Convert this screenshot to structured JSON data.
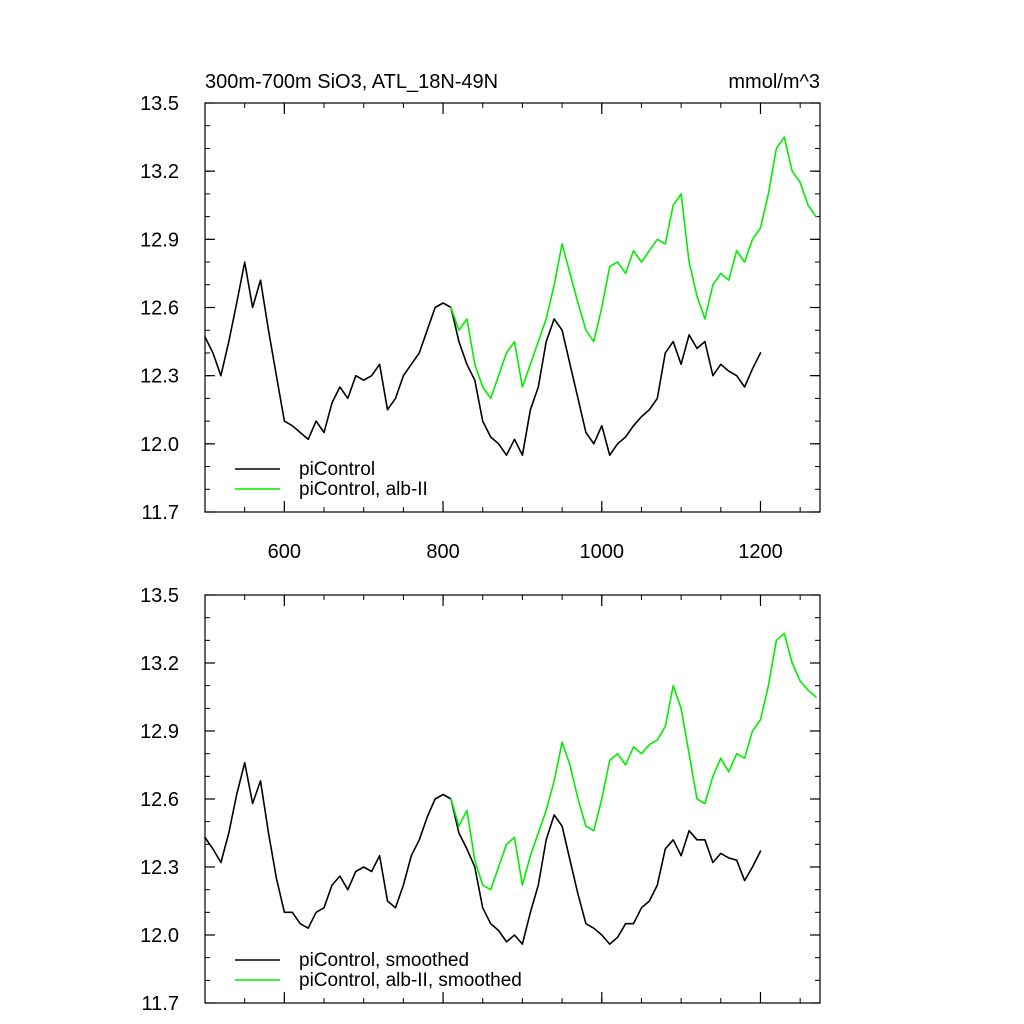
{
  "header": {
    "title": "300m-700m SiO3, ATL_18N-49N",
    "units": "mmol/m^3"
  },
  "chart_data": [
    {
      "type": "line",
      "panel": "top",
      "title": "300m-700m SiO3, ATL_18N-49N",
      "units": "mmol/m^3",
      "xlim": [
        500,
        1275
      ],
      "ylim": [
        11.7,
        13.5
      ],
      "xticks": [
        600,
        800,
        1000,
        1200
      ],
      "xtick_labels": [
        "600",
        "800",
        "1000",
        "1200"
      ],
      "yticks": [
        11.7,
        12.0,
        12.3,
        12.6,
        12.9,
        13.2,
        13.5
      ],
      "ytick_labels": [
        "11.7",
        "12.0",
        "12.3",
        "12.6",
        "12.9",
        "13.2",
        "13.5"
      ],
      "legend_position": "bottom-left",
      "series": [
        {
          "name": "piControl",
          "color": "#000000",
          "x": [
            500,
            510,
            520,
            530,
            540,
            550,
            560,
            570,
            580,
            590,
            600,
            610,
            620,
            630,
            640,
            650,
            660,
            670,
            680,
            690,
            700,
            710,
            720,
            730,
            740,
            750,
            760,
            770,
            780,
            790,
            800,
            810,
            820,
            830,
            840,
            850,
            860,
            870,
            880,
            890,
            900,
            910,
            920,
            930,
            940,
            950,
            960,
            970,
            980,
            990,
            1000,
            1010,
            1020,
            1030,
            1040,
            1050,
            1060,
            1070,
            1080,
            1090,
            1100,
            1110,
            1120,
            1130,
            1140,
            1150,
            1160,
            1170,
            1180,
            1190,
            1200
          ],
          "values": [
            12.47,
            12.4,
            12.3,
            12.45,
            12.62,
            12.8,
            12.6,
            12.72,
            12.5,
            12.3,
            12.1,
            12.08,
            12.05,
            12.02,
            12.1,
            12.05,
            12.18,
            12.25,
            12.2,
            12.3,
            12.28,
            12.3,
            12.35,
            12.15,
            12.2,
            12.3,
            12.35,
            12.4,
            12.5,
            12.6,
            12.62,
            12.6,
            12.45,
            12.35,
            12.28,
            12.1,
            12.03,
            12.0,
            11.95,
            12.02,
            11.95,
            12.15,
            12.25,
            12.45,
            12.55,
            12.5,
            12.35,
            12.2,
            12.05,
            12.0,
            12.08,
            11.95,
            12.0,
            12.03,
            12.08,
            12.12,
            12.15,
            12.2,
            12.4,
            12.45,
            12.35,
            12.48,
            12.42,
            12.45,
            12.3,
            12.35,
            12.32,
            12.3,
            12.25,
            12.33,
            12.4
          ]
        },
        {
          "name": "piControl, alb-II",
          "color": "#00ee00",
          "x": [
            810,
            820,
            830,
            840,
            850,
            860,
            870,
            880,
            890,
            900,
            910,
            920,
            930,
            940,
            950,
            960,
            970,
            980,
            990,
            1000,
            1010,
            1020,
            1030,
            1040,
            1050,
            1060,
            1070,
            1080,
            1090,
            1100,
            1110,
            1120,
            1130,
            1140,
            1150,
            1160,
            1170,
            1180,
            1190,
            1200,
            1210,
            1220,
            1230,
            1240,
            1250,
            1260,
            1270
          ],
          "values": [
            12.6,
            12.5,
            12.55,
            12.35,
            12.25,
            12.2,
            12.3,
            12.4,
            12.45,
            12.25,
            12.35,
            12.45,
            12.55,
            12.7,
            12.88,
            12.75,
            12.62,
            12.5,
            12.45,
            12.6,
            12.78,
            12.8,
            12.75,
            12.85,
            12.8,
            12.85,
            12.9,
            12.88,
            13.05,
            13.1,
            12.8,
            12.65,
            12.55,
            12.7,
            12.75,
            12.72,
            12.85,
            12.8,
            12.9,
            12.95,
            13.1,
            13.3,
            13.35,
            13.2,
            13.15,
            13.05,
            13.0
          ]
        }
      ]
    },
    {
      "type": "line",
      "panel": "bottom",
      "xlim": [
        500,
        1275
      ],
      "ylim": [
        11.7,
        13.5
      ],
      "xticks": [
        600,
        800,
        1000,
        1200
      ],
      "yticks": [
        11.7,
        12.0,
        12.3,
        12.6,
        12.9,
        13.2,
        13.5
      ],
      "ytick_labels": [
        "11.7",
        "12.0",
        "12.3",
        "12.6",
        "12.9",
        "13.2",
        "13.5"
      ],
      "legend_position": "bottom-left",
      "series": [
        {
          "name": "piControl, smoothed",
          "color": "#000000",
          "x": [
            500,
            510,
            520,
            530,
            540,
            550,
            560,
            570,
            580,
            590,
            600,
            610,
            620,
            630,
            640,
            650,
            660,
            670,
            680,
            690,
            700,
            710,
            720,
            730,
            740,
            750,
            760,
            770,
            780,
            790,
            800,
            810,
            820,
            830,
            840,
            850,
            860,
            870,
            880,
            890,
            900,
            910,
            920,
            930,
            940,
            950,
            960,
            970,
            980,
            990,
            1000,
            1010,
            1020,
            1030,
            1040,
            1050,
            1060,
            1070,
            1080,
            1090,
            1100,
            1110,
            1120,
            1130,
            1140,
            1150,
            1160,
            1170,
            1180,
            1190,
            1200
          ],
          "values": [
            12.43,
            12.38,
            12.32,
            12.45,
            12.62,
            12.76,
            12.58,
            12.68,
            12.45,
            12.25,
            12.1,
            12.1,
            12.05,
            12.03,
            12.1,
            12.12,
            12.22,
            12.26,
            12.2,
            12.28,
            12.3,
            12.28,
            12.35,
            12.15,
            12.12,
            12.22,
            12.35,
            12.42,
            12.52,
            12.6,
            12.62,
            12.6,
            12.45,
            12.38,
            12.3,
            12.12,
            12.05,
            12.02,
            11.97,
            12.0,
            11.96,
            12.1,
            12.22,
            12.42,
            12.53,
            12.48,
            12.33,
            12.18,
            12.05,
            12.03,
            12.0,
            11.96,
            11.99,
            12.05,
            12.05,
            12.12,
            12.15,
            12.22,
            12.38,
            12.42,
            12.35,
            12.46,
            12.42,
            12.42,
            12.32,
            12.36,
            12.34,
            12.33,
            12.24,
            12.3,
            12.37
          ]
        },
        {
          "name": "piControl, alb-II, smoothed",
          "color": "#00ee00",
          "x": [
            810,
            820,
            830,
            840,
            850,
            860,
            870,
            880,
            890,
            900,
            910,
            920,
            930,
            940,
            950,
            960,
            970,
            980,
            990,
            1000,
            1010,
            1020,
            1030,
            1040,
            1050,
            1060,
            1070,
            1080,
            1090,
            1100,
            1110,
            1120,
            1130,
            1140,
            1150,
            1160,
            1170,
            1180,
            1190,
            1200,
            1210,
            1220,
            1230,
            1240,
            1250,
            1260,
            1270
          ],
          "values": [
            12.6,
            12.48,
            12.55,
            12.33,
            12.22,
            12.2,
            12.3,
            12.4,
            12.43,
            12.22,
            12.35,
            12.45,
            12.55,
            12.68,
            12.85,
            12.75,
            12.6,
            12.48,
            12.46,
            12.6,
            12.77,
            12.8,
            12.75,
            12.83,
            12.8,
            12.84,
            12.86,
            12.92,
            13.1,
            13.0,
            12.8,
            12.6,
            12.58,
            12.7,
            12.78,
            12.72,
            12.8,
            12.78,
            12.9,
            12.95,
            13.1,
            13.3,
            13.33,
            13.2,
            13.12,
            13.08,
            13.05
          ]
        }
      ]
    }
  ]
}
